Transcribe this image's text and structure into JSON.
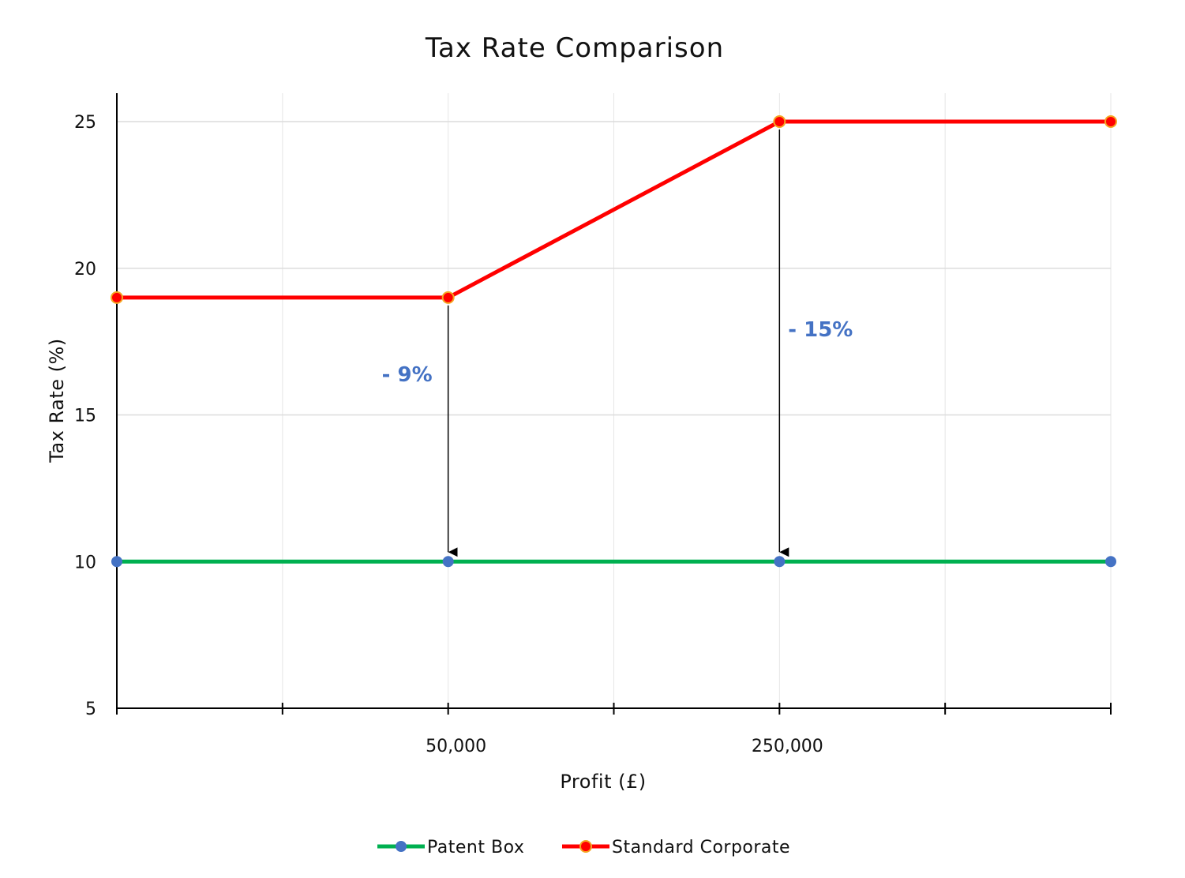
{
  "chart_data": {
    "type": "line",
    "title": "Tax Rate Comparison",
    "xlabel": "Profit (£)",
    "ylabel": "Tax Rate (%)",
    "x_tick_labels": [
      {
        "index": 1,
        "label": "50,000"
      },
      {
        "index": 2,
        "label": "250,000"
      }
    ],
    "y_ticks": [
      5,
      10,
      15,
      20,
      25
    ],
    "ylim": [
      5,
      26
    ],
    "grid": true,
    "legend_position": "bottom",
    "x_points": 4,
    "series": [
      {
        "name": "Patent Box",
        "values": [
          10,
          10,
          10,
          10
        ],
        "line_color": "#00b050",
        "marker_color": "#4472c4"
      },
      {
        "name": "Standard Corporate",
        "values": [
          19,
          19,
          25,
          25
        ],
        "line_color": "#ff0000",
        "marker_color": "#ff0000",
        "marker_edge": "#f5a623"
      }
    ],
    "annotations": [
      {
        "text": "- 9%",
        "x_index": 1,
        "from": 19,
        "to": 10,
        "color": "#4472c4"
      },
      {
        "text": "- 15%",
        "x_index": 2,
        "from": 25,
        "to": 10,
        "color": "#4472c4"
      }
    ]
  }
}
